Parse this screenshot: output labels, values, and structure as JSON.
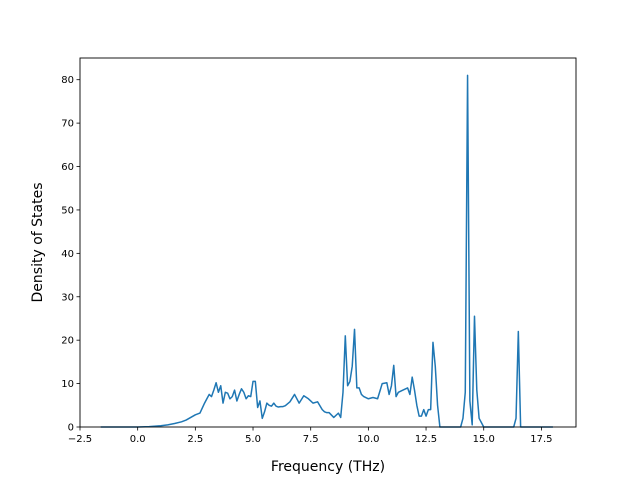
{
  "chart_data": {
    "type": "line",
    "title": "",
    "xlabel": "Frequency (THz)",
    "ylabel": "Density of States",
    "xlim": [
      -2.5,
      19.0
    ],
    "ylim": [
      0,
      85
    ],
    "grid": false,
    "line_color": "#1f77b4",
    "x_ticks": [
      -2.5,
      0.0,
      2.5,
      5.0,
      7.5,
      10.0,
      12.5,
      15.0,
      17.5
    ],
    "x_tick_labels": [
      "−2.5",
      "0.0",
      "2.5",
      "5.0",
      "7.5",
      "10.0",
      "12.5",
      "15.0",
      "17.5"
    ],
    "y_ticks": [
      0,
      10,
      20,
      30,
      40,
      50,
      60,
      70,
      80
    ],
    "y_tick_labels": [
      "0",
      "10",
      "20",
      "30",
      "40",
      "50",
      "60",
      "70",
      "80"
    ],
    "series": [
      {
        "x": [
          -1.6,
          -1.0,
          -0.5,
          0.0,
          0.5,
          1.0,
          1.3,
          1.6,
          1.9,
          2.1,
          2.3,
          2.5,
          2.7,
          2.9,
          3.0,
          3.1,
          3.2,
          3.3,
          3.4,
          3.5,
          3.6,
          3.7,
          3.8,
          3.9,
          4.0,
          4.1,
          4.2,
          4.3,
          4.4,
          4.5,
          4.6,
          4.7,
          4.8,
          4.9,
          5.0,
          5.1,
          5.2,
          5.3,
          5.4,
          5.5,
          5.6,
          5.7,
          5.8,
          5.9,
          6.0,
          6.1,
          6.2,
          6.3,
          6.4,
          6.6,
          6.8,
          7.0,
          7.2,
          7.4,
          7.5,
          7.6,
          7.8,
          8.0,
          8.1,
          8.2,
          8.3,
          8.5,
          8.7,
          8.8,
          8.9,
          9.0,
          9.1,
          9.2,
          9.3,
          9.4,
          9.5,
          9.6,
          9.7,
          9.8,
          10.0,
          10.2,
          10.4,
          10.6,
          10.8,
          10.9,
          11.0,
          11.1,
          11.2,
          11.3,
          11.5,
          11.7,
          11.8,
          11.9,
          12.0,
          12.1,
          12.2,
          12.3,
          12.4,
          12.5,
          12.6,
          12.7,
          12.8,
          12.9,
          13.0,
          13.1,
          13.2,
          13.4,
          13.6,
          13.8,
          14.0,
          14.1,
          14.2,
          14.3,
          14.4,
          14.5,
          14.6,
          14.7,
          14.8,
          14.9,
          15.0,
          15.2,
          15.5,
          16.0,
          16.3,
          16.4,
          16.5,
          16.6,
          16.8,
          17.0,
          17.5,
          18.0
        ],
        "values": [
          0,
          0,
          0,
          0,
          0.1,
          0.3,
          0.5,
          0.8,
          1.2,
          1.6,
          2.2,
          2.8,
          3.2,
          5.5,
          6.5,
          7.5,
          7.0,
          8.5,
          10.2,
          8.0,
          9.5,
          5.5,
          8.0,
          7.8,
          6.5,
          7.0,
          8.5,
          6.0,
          7.5,
          8.8,
          8.0,
          6.5,
          7.2,
          7.0,
          10.5,
          10.5,
          4.5,
          6.0,
          2.0,
          3.5,
          5.5,
          5.0,
          4.8,
          5.5,
          4.8,
          4.6,
          4.7,
          4.7,
          4.9,
          5.8,
          7.5,
          5.5,
          7.2,
          6.5,
          6.0,
          5.5,
          5.8,
          4.0,
          3.5,
          3.3,
          3.3,
          2.2,
          3.2,
          2.2,
          8.0,
          21.0,
          9.5,
          10.5,
          14.0,
          22.5,
          9.0,
          9.0,
          7.5,
          7.0,
          6.5,
          6.8,
          6.5,
          10.0,
          10.2,
          7.5,
          9.5,
          14.2,
          7.0,
          8.0,
          8.5,
          9.0,
          7.5,
          11.5,
          8.5,
          5.0,
          2.5,
          2.5,
          4.0,
          2.5,
          4.0,
          4.0,
          19.5,
          14.0,
          5.0,
          0,
          0,
          0,
          0,
          0,
          0,
          2.0,
          8.0,
          81.0,
          6.0,
          0.5,
          25.5,
          8.5,
          2.0,
          1.0,
          0,
          0,
          0,
          0,
          0,
          2.0,
          22.0,
          0,
          0,
          0,
          0,
          0
        ]
      }
    ]
  }
}
